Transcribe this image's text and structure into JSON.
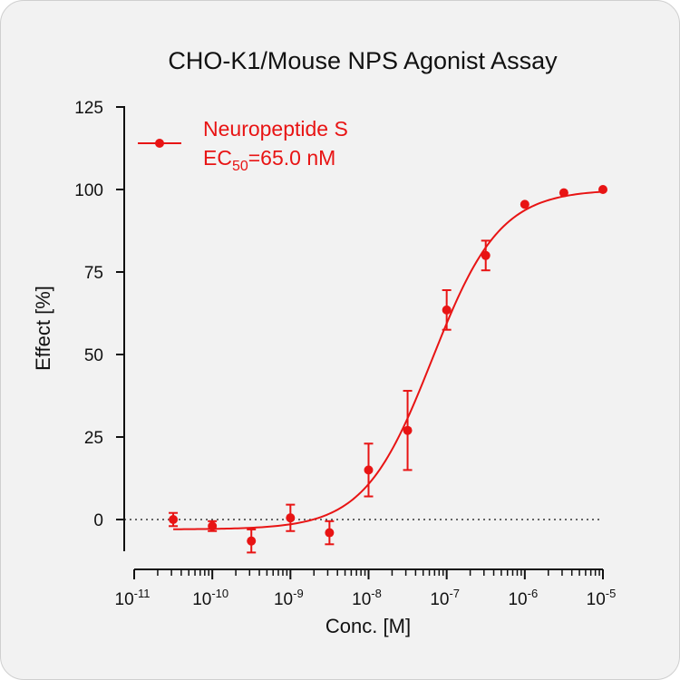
{
  "chart_data": {
    "type": "scatter",
    "title": "CHO-K1/Mouse NPS Agonist Assay",
    "xlabel": "Conc. [M]",
    "ylabel": "Effect  [%]",
    "x_scale": "log",
    "x_tick_labels": [
      {
        "base": "10",
        "exp": "-11"
      },
      {
        "base": "10",
        "exp": "-10"
      },
      {
        "base": "10",
        "exp": "-9"
      },
      {
        "base": "10",
        "exp": "-8"
      },
      {
        "base": "10",
        "exp": "-7"
      },
      {
        "base": "10",
        "exp": "-6"
      },
      {
        "base": "10",
        "exp": "-5"
      }
    ],
    "xlim": [
      1e-11,
      1e-05
    ],
    "ylim": [
      -10,
      125
    ],
    "y_ticks": [
      0,
      25,
      50,
      75,
      100,
      125
    ],
    "reference_line_y": 0,
    "legend_placement": "top-left",
    "colors": {
      "series": "#e81414",
      "axis": "#111111",
      "background": "#f2f2f2"
    },
    "series": [
      {
        "name": "Neuropeptide S",
        "annotation_main": "EC",
        "annotation_sub": "50",
        "annotation_tail": "=65.0 nM",
        "ec50_molar": 6.5e-08,
        "fit": {
          "bottom": -3,
          "top": 100,
          "hill": 1
        },
        "points": [
          {
            "x": 3.16e-11,
            "y": 0,
            "err": 2
          },
          {
            "x": 1e-10,
            "y": -2,
            "err": 1.5
          },
          {
            "x": 3.16e-10,
            "y": -6.5,
            "err": 3.5
          },
          {
            "x": 1e-09,
            "y": 0.5,
            "err": 4
          },
          {
            "x": 3.16e-09,
            "y": -4,
            "err": 3.5
          },
          {
            "x": 1e-08,
            "y": 15,
            "err": 8
          },
          {
            "x": 3.16e-08,
            "y": 27,
            "err": 12
          },
          {
            "x": 1e-07,
            "y": 63.5,
            "err": 6
          },
          {
            "x": 3.16e-07,
            "y": 80,
            "err": 4.5
          },
          {
            "x": 1e-06,
            "y": 95.5,
            "err": 0
          },
          {
            "x": 3.16e-06,
            "y": 99,
            "err": 0
          },
          {
            "x": 1e-05,
            "y": 100,
            "err": 0
          }
        ]
      }
    ]
  }
}
